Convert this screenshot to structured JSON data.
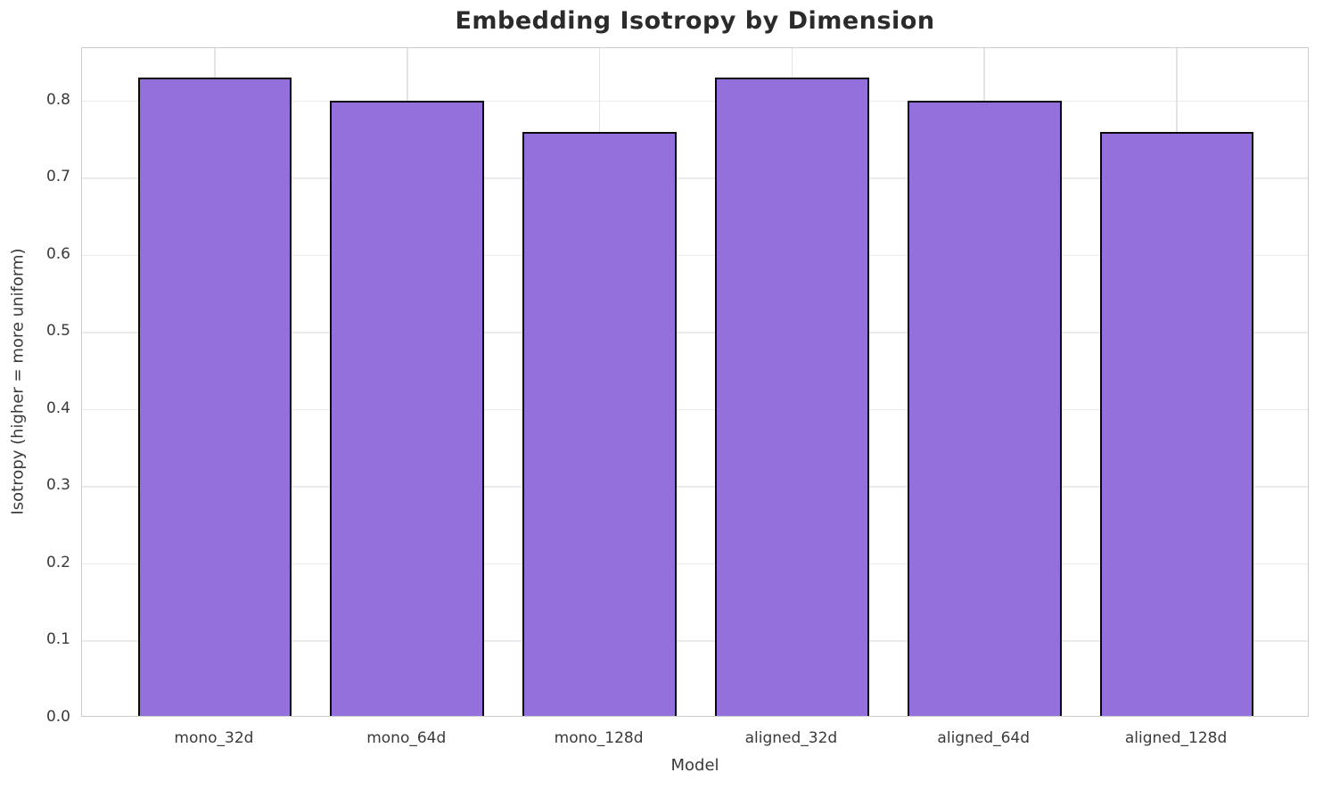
{
  "chart_data": {
    "type": "bar",
    "title": "Embedding Isotropy by Dimension",
    "xlabel": "Model",
    "ylabel": "Isotropy (higher = more uniform)",
    "categories": [
      "mono_32d",
      "mono_64d",
      "mono_128d",
      "aligned_32d",
      "aligned_64d",
      "aligned_128d"
    ],
    "values": [
      0.827,
      0.798,
      0.757,
      0.827,
      0.798,
      0.757
    ],
    "ylim": [
      0,
      0.868
    ],
    "yticks": [
      0.0,
      0.1,
      0.2,
      0.3,
      0.4,
      0.5,
      0.6,
      0.7,
      0.8
    ],
    "ytick_labels": [
      "0.0",
      "0.1",
      "0.2",
      "0.3",
      "0.4",
      "0.5",
      "0.6",
      "0.7",
      "0.8"
    ],
    "grid": true,
    "legend": null,
    "bar_color": "#9370db",
    "bar_edge_color": "#0a0a0a"
  }
}
